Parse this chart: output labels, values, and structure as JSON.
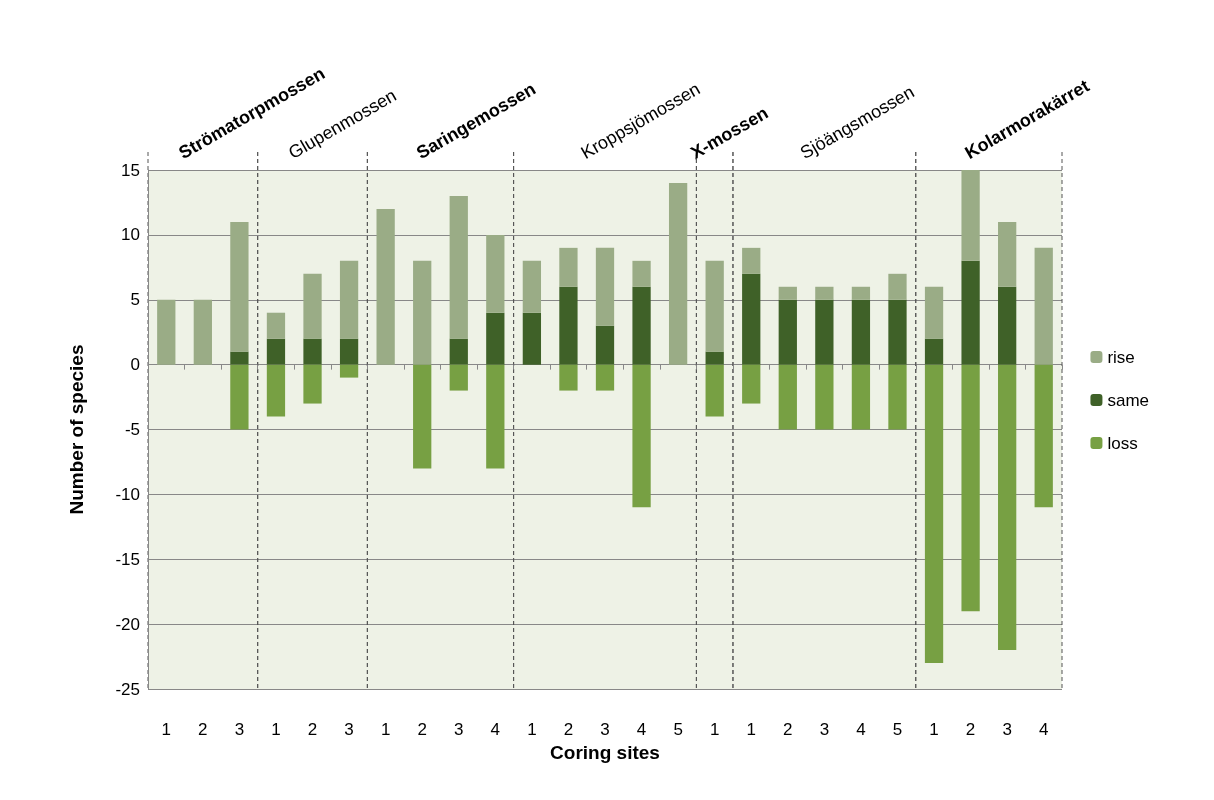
{
  "chart_data": {
    "type": "bar",
    "stacked": true,
    "xlabel": "Coring sites",
    "ylabel": "Number of species",
    "categories": [
      "1",
      "2",
      "3",
      "1",
      "2",
      "3",
      "1",
      "2",
      "3",
      "4",
      "1",
      "2",
      "3",
      "4",
      "5",
      "1",
      "1",
      "2",
      "3",
      "4",
      "5",
      "1",
      "2",
      "3",
      "4"
    ],
    "series": [
      {
        "name": "same",
        "color": "#3f6128",
        "values": [
          0,
          0,
          1,
          2,
          2,
          2,
          0,
          0,
          2,
          4,
          4,
          6,
          3,
          6,
          0,
          1,
          7,
          5,
          5,
          5,
          5,
          2,
          8,
          6,
          0
        ]
      },
      {
        "name": "rise",
        "color": "#9aac86",
        "values": [
          5,
          5,
          10,
          2,
          5,
          6,
          12,
          8,
          11,
          6,
          4,
          3,
          6,
          2,
          14,
          7,
          2,
          1,
          1,
          1,
          2,
          4,
          7,
          5,
          9
        ]
      },
      {
        "name": "loss",
        "color": "#77a043",
        "values": [
          0,
          0,
          -5,
          -4,
          -3,
          -1,
          0,
          -8,
          -2,
          -8,
          0,
          -2,
          -2,
          -11,
          0,
          -4,
          -3,
          -5,
          -5,
          -5,
          -5,
          -23,
          -19,
          -22,
          -11
        ]
      }
    ],
    "ylim": [
      -25,
      15
    ],
    "yticks": [
      -25,
      -20,
      -15,
      -10,
      -5,
      0,
      5,
      10,
      15
    ],
    "grid": "y",
    "legend": "right",
    "annotations": [
      "Strömatorpmossen",
      "Glupenmossen",
      "Saringemossen",
      "Kroppsjömossen",
      "X-mossen",
      "Sjöängsmossen",
      "Kolarmorakärret"
    ]
  }
}
